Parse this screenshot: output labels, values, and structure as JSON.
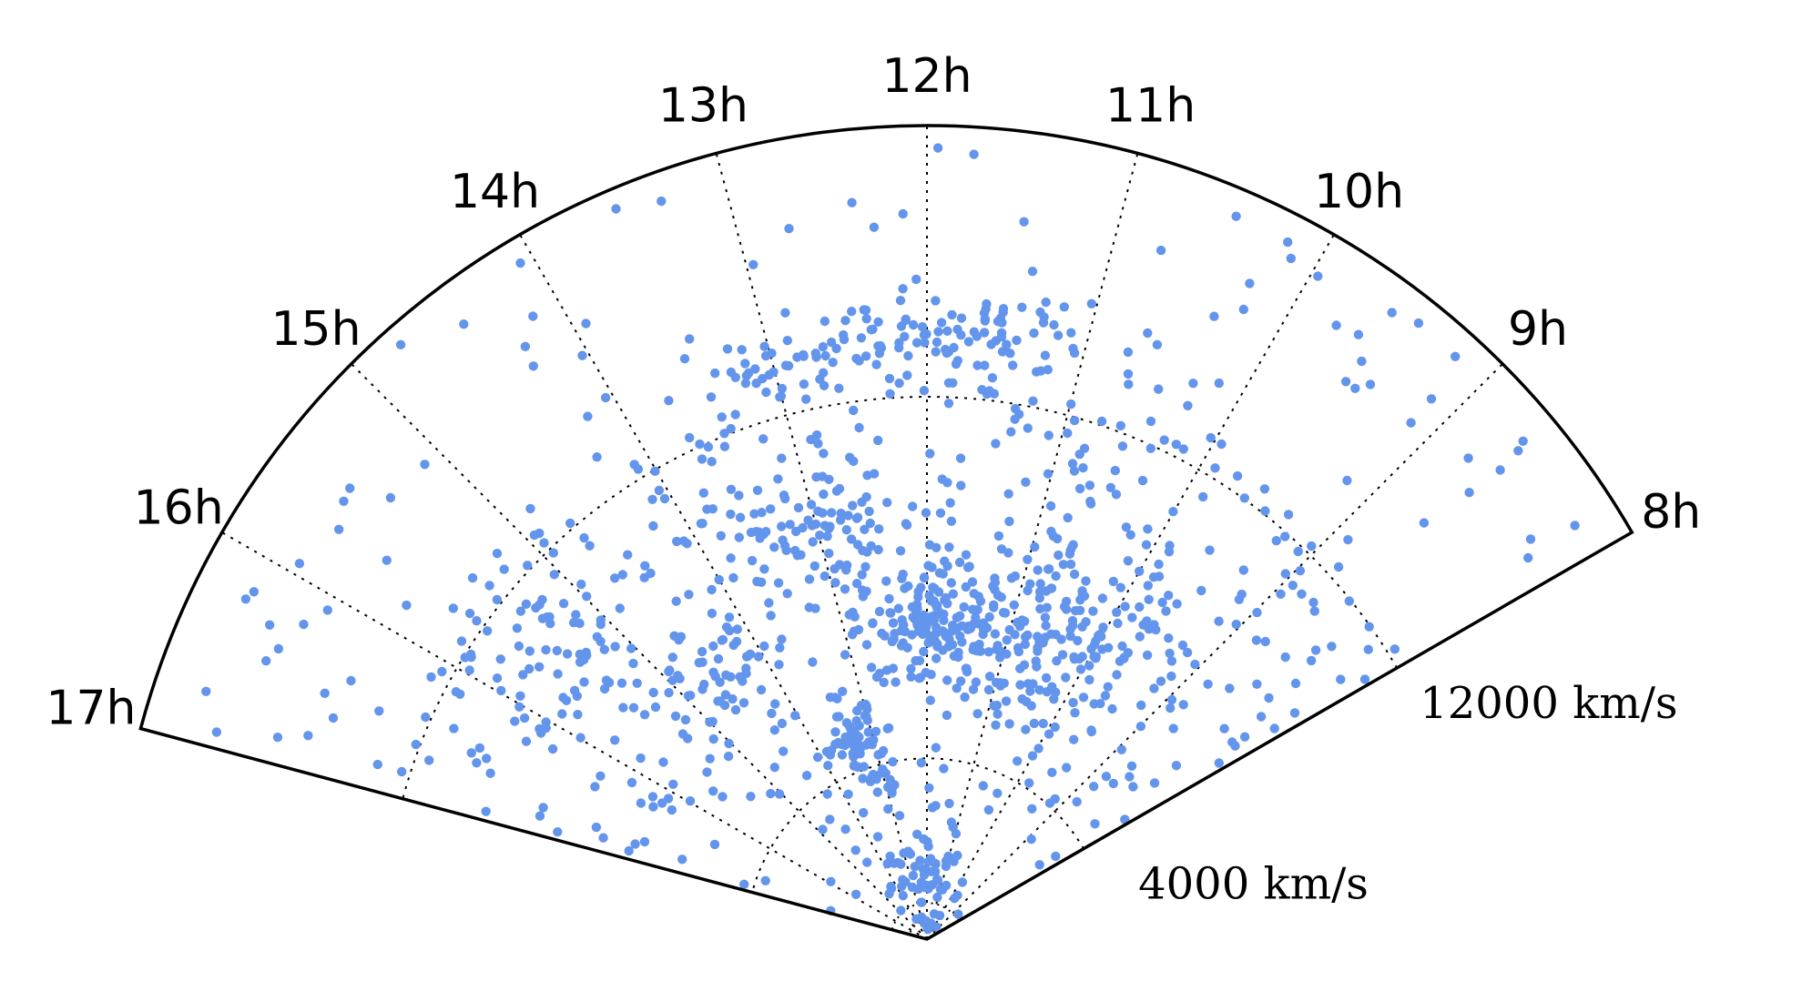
{
  "chart_data": {
    "type": "scatter",
    "projection": "polar-wedge",
    "title": "",
    "angular_axis": {
      "unit": "hours of right ascension",
      "range": [
        8,
        17
      ],
      "tick_labels": [
        "8h",
        "9h",
        "10h",
        "11h",
        "12h",
        "13h",
        "14h",
        "15h",
        "16h",
        "17h"
      ],
      "direction": "hours increase counter-clockwise, 12h at top"
    },
    "radial_axis": {
      "unit": "km/s",
      "range": [
        0,
        18000
      ],
      "gridlines": [
        4000,
        12000
      ],
      "tick_labels": [
        "4000 km/s",
        "12000 km/s"
      ]
    },
    "grid": true,
    "grid_style": "dotted",
    "marker_color": "#6495ED",
    "series": [
      {
        "points_count": 1300,
        "structures": [
          {
            "ra_h": 12.05,
            "v_kms": 7000,
            "spread_h": 0.35,
            "spread_kms": 450,
            "share": 0.08
          },
          {
            "ra_h": 13.3,
            "v_kms": 4500,
            "spread_h": 0.3,
            "spread_kms": 500,
            "share": 0.05
          },
          {
            "ra_h": 11.0,
            "v_kms": 7000,
            "spread_h": 0.6,
            "spread_kms": 1000,
            "share": 0.08
          },
          {
            "ra_h": 10.2,
            "v_kms": 8000,
            "spread_h": 0.9,
            "spread_kms": 1100,
            "share": 0.09
          },
          {
            "ra_h": 13.0,
            "v_kms": 9500,
            "spread_h": 0.5,
            "spread_kms": 800,
            "share": 0.06
          },
          {
            "ra_h": 12.6,
            "v_kms": 13200,
            "spread_h": 0.5,
            "spread_kms": 500,
            "share": 0.05
          },
          {
            "ra_h": 11.6,
            "v_kms": 13500,
            "spread_h": 0.4,
            "spread_kms": 500,
            "share": 0.04
          },
          {
            "ra_h": 14.8,
            "v_kms": 7500,
            "spread_h": 0.4,
            "spread_kms": 700,
            "share": 0.05
          },
          {
            "ra_h": 15.5,
            "v_kms": 10500,
            "spread_h": 0.5,
            "spread_kms": 1000,
            "share": 0.04
          },
          {
            "ra_h": 12.5,
            "v_kms": 1500,
            "spread_h": 1.2,
            "spread_kms": 700,
            "share": 0.05
          }
        ]
      }
    ]
  }
}
